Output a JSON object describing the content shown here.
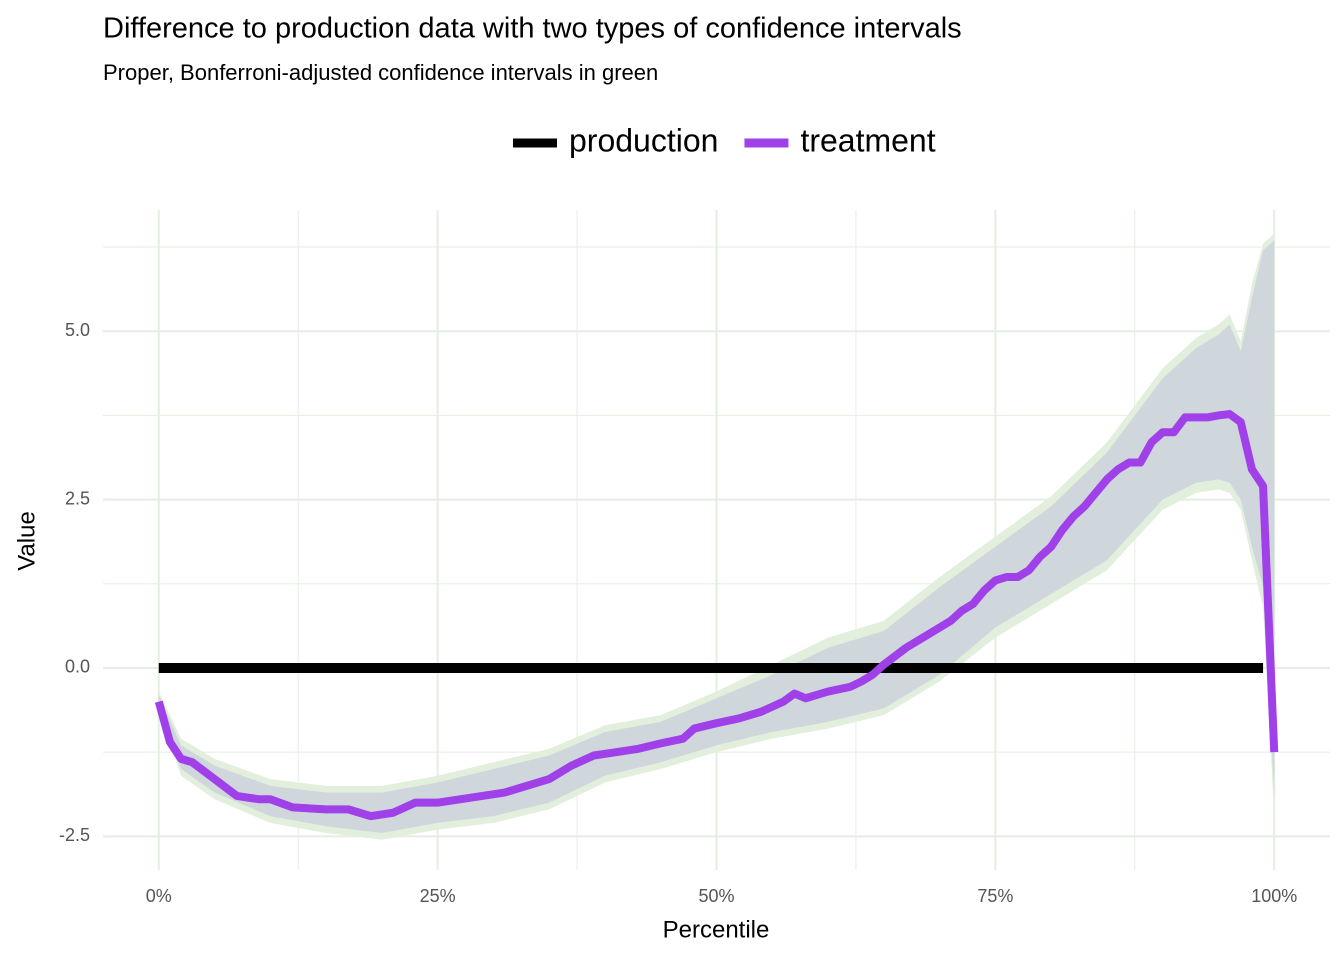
{
  "chart_data": {
    "type": "line",
    "title": "Difference to production data with two types of confidence intervals",
    "subtitle": "Proper, Bonferroni-adjusted confidence intervals in green",
    "x_label": "Percentile",
    "y_label": "Value",
    "xlim": [
      -5,
      105
    ],
    "ylim": [
      -3,
      6.8
    ],
    "xticks": [
      {
        "value": 0,
        "label": "0%"
      },
      {
        "value": 25,
        "label": "25%"
      },
      {
        "value": 50,
        "label": "50%"
      },
      {
        "value": 75,
        "label": "75%"
      },
      {
        "value": 100,
        "label": "100%"
      }
    ],
    "yticks": [
      -2.5,
      {
        "value": 0,
        "label": "0.0"
      },
      2.5,
      {
        "value": 5,
        "label": "5.0"
      }
    ],
    "xminor": [
      12.5,
      37.5,
      62.5,
      87.5
    ],
    "yminor": [
      -1.25,
      1.25,
      3.75,
      6.25
    ],
    "grid": true,
    "legend_position": "top",
    "bands": [
      {
        "color": "#e2efdd",
        "x": [
          0,
          2,
          5,
          10,
          15,
          20,
          25,
          30,
          35,
          40,
          45,
          50,
          55,
          60,
          65,
          70,
          75,
          80,
          85,
          90,
          93,
          95,
          96,
          97,
          98,
          99,
          100
        ],
        "upper": [
          -0.35,
          -1.05,
          -1.35,
          -1.65,
          -1.75,
          -1.75,
          -1.6,
          -1.4,
          -1.2,
          -0.85,
          -0.7,
          -0.35,
          0.05,
          0.45,
          0.7,
          1.35,
          1.95,
          2.55,
          3.35,
          4.45,
          4.9,
          5.1,
          5.25,
          4.85,
          5.7,
          6.3,
          6.45
        ],
        "lower": [
          -0.65,
          -1.6,
          -1.95,
          -2.3,
          -2.45,
          -2.55,
          -2.4,
          -2.3,
          -2.1,
          -1.7,
          -1.5,
          -1.25,
          -1.05,
          -0.9,
          -0.7,
          -0.2,
          0.45,
          0.95,
          1.45,
          2.35,
          2.6,
          2.65,
          2.6,
          2.35,
          1.6,
          0.9,
          -2.2
        ]
      },
      {
        "color": "#cfd7dc",
        "x": [
          0,
          2,
          5,
          10,
          15,
          20,
          25,
          30,
          35,
          40,
          45,
          50,
          55,
          60,
          65,
          70,
          75,
          80,
          85,
          90,
          93,
          95,
          96,
          97,
          98,
          99,
          100
        ],
        "upper": [
          -0.4,
          -1.15,
          -1.45,
          -1.75,
          -1.85,
          -1.85,
          -1.7,
          -1.5,
          -1.3,
          -0.95,
          -0.8,
          -0.45,
          -0.1,
          0.3,
          0.55,
          1.2,
          1.8,
          2.4,
          3.2,
          4.3,
          4.75,
          4.95,
          5.1,
          4.7,
          5.5,
          6.2,
          6.35
        ],
        "lower": [
          -0.6,
          -1.5,
          -1.85,
          -2.2,
          -2.35,
          -2.45,
          -2.3,
          -2.2,
          -2.0,
          -1.6,
          -1.4,
          -1.15,
          -0.95,
          -0.8,
          -0.6,
          -0.1,
          0.6,
          1.1,
          1.6,
          2.5,
          2.75,
          2.8,
          2.75,
          2.5,
          1.8,
          1.2,
          -1.9
        ]
      }
    ],
    "series": [
      {
        "name": "production",
        "color": "#000000",
        "x": [
          0,
          99
        ],
        "values": [
          0,
          0
        ]
      },
      {
        "name": "treatment",
        "color": "#a040e8",
        "x": [
          0,
          1,
          2,
          3,
          5,
          7,
          9,
          10,
          12,
          15,
          17,
          19,
          21,
          23,
          25,
          27,
          29,
          31,
          33,
          35,
          37,
          39,
          41,
          43,
          45,
          47,
          48,
          50,
          52,
          54,
          56,
          57,
          58,
          60,
          62,
          63,
          64,
          65,
          67,
          69,
          71,
          72,
          73,
          74,
          75,
          76,
          77,
          78,
          79,
          80,
          81,
          82,
          83,
          84,
          85,
          86,
          87,
          88,
          89,
          90,
          91,
          92,
          93,
          94,
          95,
          96,
          97,
          98,
          99,
          100
        ],
        "values": [
          -0.5,
          -1.1,
          -1.35,
          -1.4,
          -1.65,
          -1.9,
          -1.95,
          -1.95,
          -2.07,
          -2.1,
          -2.1,
          -2.2,
          -2.15,
          -2.0,
          -2.0,
          -1.95,
          -1.9,
          -1.85,
          -1.75,
          -1.65,
          -1.45,
          -1.3,
          -1.25,
          -1.2,
          -1.12,
          -1.05,
          -0.9,
          -0.82,
          -0.75,
          -0.65,
          -0.5,
          -0.38,
          -0.45,
          -0.35,
          -0.28,
          -0.2,
          -0.1,
          0.05,
          0.3,
          0.5,
          0.7,
          0.85,
          0.95,
          1.15,
          1.3,
          1.35,
          1.35,
          1.45,
          1.65,
          1.8,
          2.05,
          2.25,
          2.4,
          2.6,
          2.8,
          2.95,
          3.05,
          3.05,
          3.35,
          3.5,
          3.5,
          3.72,
          3.72,
          3.72,
          3.75,
          3.77,
          3.65,
          2.95,
          2.7,
          -1.25
        ]
      }
    ]
  }
}
